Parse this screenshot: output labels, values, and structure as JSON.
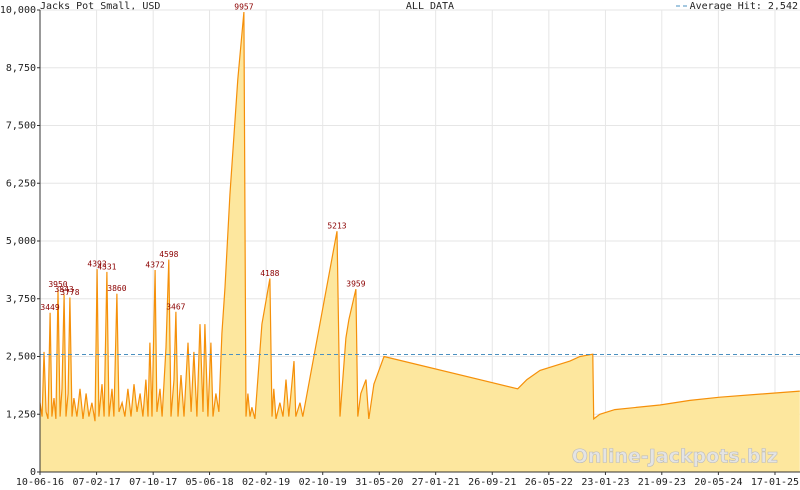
{
  "chart_data": {
    "type": "area",
    "title": "Jacks Pot Small, USD",
    "subtitle": "ALL DATA",
    "watermark": "Online-Jackpots.biz",
    "average": {
      "value": 2542,
      "label": "Average Hit: 2,542"
    },
    "average_color": "#4a90c0",
    "x": [
      0,
      9,
      17,
      26,
      34,
      43,
      51,
      60,
      68,
      77,
      86,
      94,
      103,
      111,
      120,
      128,
      137,
      145,
      158,
      171,
      184,
      197,
      209,
      222,
      235,
      244,
      252,
      265,
      274,
      286,
      295,
      308,
      316,
      329,
      338,
      351,
      363,
      376,
      389,
      402,
      415,
      428,
      440,
      453,
      462,
      470,
      479,
      492,
      500,
      513,
      522,
      539,
      551,
      560,
      573,
      581,
      590,
      603,
      616,
      633,
      646,
      658,
      671,
      684,
      697,
      705,
      718,
      731,
      740,
      752,
      765,
      778,
      791,
      812,
      846,
      872,
      881,
      889,
      898,
      906,
      919,
      949,
      983,
      992,
      1000,
      1009,
      1026,
      1039,
      1052,
      1064,
      1086,
      1094,
      1112,
      1124,
      1270,
      1283,
      1308,
      1321,
      1351,
      1359,
      1372,
      1394,
      1406,
      1428,
      1471,
      2043,
      2082,
      2138,
      2266,
      2309,
      2364,
      2368,
      2394,
      2458,
      2651,
      2779,
      2907,
      3249
    ],
    "series": [
      {
        "name": "Jacks Pot Small",
        "color": "#f5900a",
        "fill": "#fde79e",
        "values": [
          1500,
          1200,
          2600,
          1300,
          1150,
          3449,
          1200,
          1600,
          1150,
          3950,
          1200,
          1800,
          3843,
          1200,
          1700,
          3778,
          1200,
          1600,
          1200,
          1800,
          1150,
          1700,
          1200,
          1500,
          1100,
          4392,
          1200,
          1900,
          1200,
          4331,
          1200,
          1800,
          1200,
          3860,
          1300,
          1500,
          1200,
          1800,
          1200,
          1900,
          1300,
          1700,
          1200,
          2000,
          1200,
          2800,
          1200,
          4372,
          1300,
          1800,
          1200,
          2700,
          4598,
          1200,
          2000,
          3467,
          1200,
          2100,
          1200,
          2800,
          1300,
          2600,
          1200,
          3200,
          1300,
          3200,
          1200,
          2800,
          1200,
          1700,
          1300,
          3000,
          4000,
          6000,
          8500,
          9957,
          1200,
          1700,
          1200,
          1400,
          1150,
          3200,
          4188,
          1200,
          1800,
          1150,
          1500,
          1200,
          2000,
          1200,
          2400,
          1200,
          1500,
          1200,
          5213,
          1200,
          2900,
          3300,
          3959,
          1200,
          1700,
          2000,
          1150,
          1900,
          2500,
          1800,
          2000,
          2200,
          2400,
          2500,
          2550,
          1150,
          1250,
          1350,
          1450,
          1550,
          1620,
          1750
        ],
        "value_labels": [
          null,
          null,
          null,
          null,
          null,
          "3449",
          null,
          null,
          null,
          "3950",
          null,
          null,
          "3843",
          null,
          null,
          "3778",
          null,
          null,
          null,
          null,
          null,
          null,
          null,
          null,
          null,
          "4392",
          null,
          null,
          null,
          "4331",
          null,
          null,
          null,
          "3860",
          null,
          null,
          null,
          null,
          null,
          null,
          null,
          null,
          null,
          null,
          null,
          null,
          null,
          "4372",
          null,
          null,
          null,
          null,
          "4598",
          null,
          null,
          "3467",
          null,
          null,
          null,
          null,
          null,
          null,
          null,
          null,
          null,
          null,
          null,
          null,
          null,
          null,
          null,
          null,
          null,
          null,
          null,
          "9957",
          null,
          null,
          null,
          null,
          null,
          null,
          "4188",
          null,
          null,
          null,
          null,
          null,
          null,
          null,
          null,
          null,
          null,
          null,
          "5213",
          null,
          null,
          null,
          "3959",
          null,
          null,
          null,
          null,
          null,
          null,
          null,
          null,
          null,
          null,
          null,
          null,
          null,
          null,
          null,
          null,
          null,
          null,
          null
        ]
      }
    ],
    "xlim": [
      0,
      3250
    ],
    "xticks": [
      {
        "value": 0,
        "label": "10-06-16"
      },
      {
        "value": 242,
        "label": "07-02-17"
      },
      {
        "value": 484,
        "label": "07-10-17"
      },
      {
        "value": 725,
        "label": "05-06-18"
      },
      {
        "value": 967,
        "label": "02-02-19"
      },
      {
        "value": 1209,
        "label": "02-10-19"
      },
      {
        "value": 1451,
        "label": "31-05-20"
      },
      {
        "value": 1692,
        "label": "27-01-21"
      },
      {
        "value": 1934,
        "label": "26-09-21"
      },
      {
        "value": 2176,
        "label": "26-05-22"
      },
      {
        "value": 2418,
        "label": "23-01-23"
      },
      {
        "value": 2659,
        "label": "21-09-23"
      },
      {
        "value": 2901,
        "label": "20-05-24"
      },
      {
        "value": 3143,
        "label": "17-01-25"
      }
    ],
    "ylim": [
      0,
      10000
    ],
    "yticks": [
      0,
      {
        "value": 1250,
        "label": "1,250"
      },
      {
        "value": 2500,
        "label": "2,500"
      },
      {
        "value": 3750,
        "label": "3,750"
      },
      {
        "value": 5000,
        "label": "5,000"
      },
      {
        "value": 6250,
        "label": "6,250"
      },
      {
        "value": 7500,
        "label": "7,500"
      },
      {
        "value": 8750,
        "label": "8,750"
      },
      {
        "value": 10000,
        "label": "10,000"
      }
    ],
    "grid": true
  }
}
